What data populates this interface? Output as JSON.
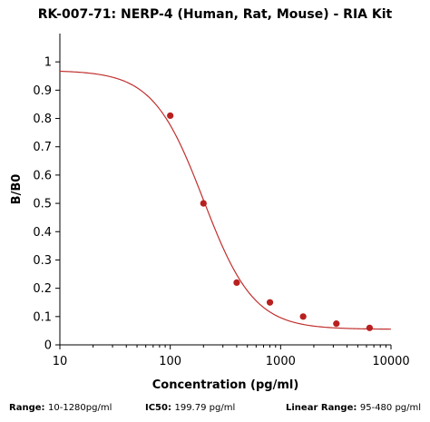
{
  "chart_data": {
    "type": "scatter",
    "title": "RK-007-71: NERP-4 (Human, Rat, Mouse) - RIA Kit",
    "xlabel": "Concentration (pg/ml)",
    "ylabel": "B/B0",
    "xscale": "log",
    "xlim": [
      10,
      10000
    ],
    "ylim": [
      0,
      1.1
    ],
    "x_ticks": [
      10,
      100,
      1000,
      10000
    ],
    "x_tick_labels": [
      "10",
      "100",
      "1000",
      "10000"
    ],
    "y_ticks": [
      0,
      0.1,
      0.2,
      0.3,
      0.4,
      0.5,
      0.6,
      0.7,
      0.8,
      0.9,
      1
    ],
    "y_tick_labels": [
      "0",
      "0.1",
      "0.2",
      "0.3",
      "0.4",
      "0.5",
      "0.6",
      "0.7",
      "0.8",
      "0.9",
      "1"
    ],
    "grid": false,
    "points": {
      "x": [
        100,
        200,
        400,
        800,
        1600,
        3200,
        6400
      ],
      "y": [
        0.81,
        0.5,
        0.22,
        0.15,
        0.1,
        0.075,
        0.06
      ]
    },
    "fit_curve": {
      "model": "4PL",
      "top": 0.97,
      "bottom": 0.055,
      "ec50": 199.79,
      "hill": 1.9
    },
    "colors": {
      "points": "#b8201f",
      "curve": "#c0302e",
      "axis": "#000000"
    }
  },
  "footer": {
    "range_label": "Range:",
    "range_value": "10-1280pg/ml",
    "ic50_label": "IC50:",
    "ic50_value": "199.79 pg/ml",
    "linear_label": "Linear Range:",
    "linear_value": "95-480 pg/ml"
  }
}
